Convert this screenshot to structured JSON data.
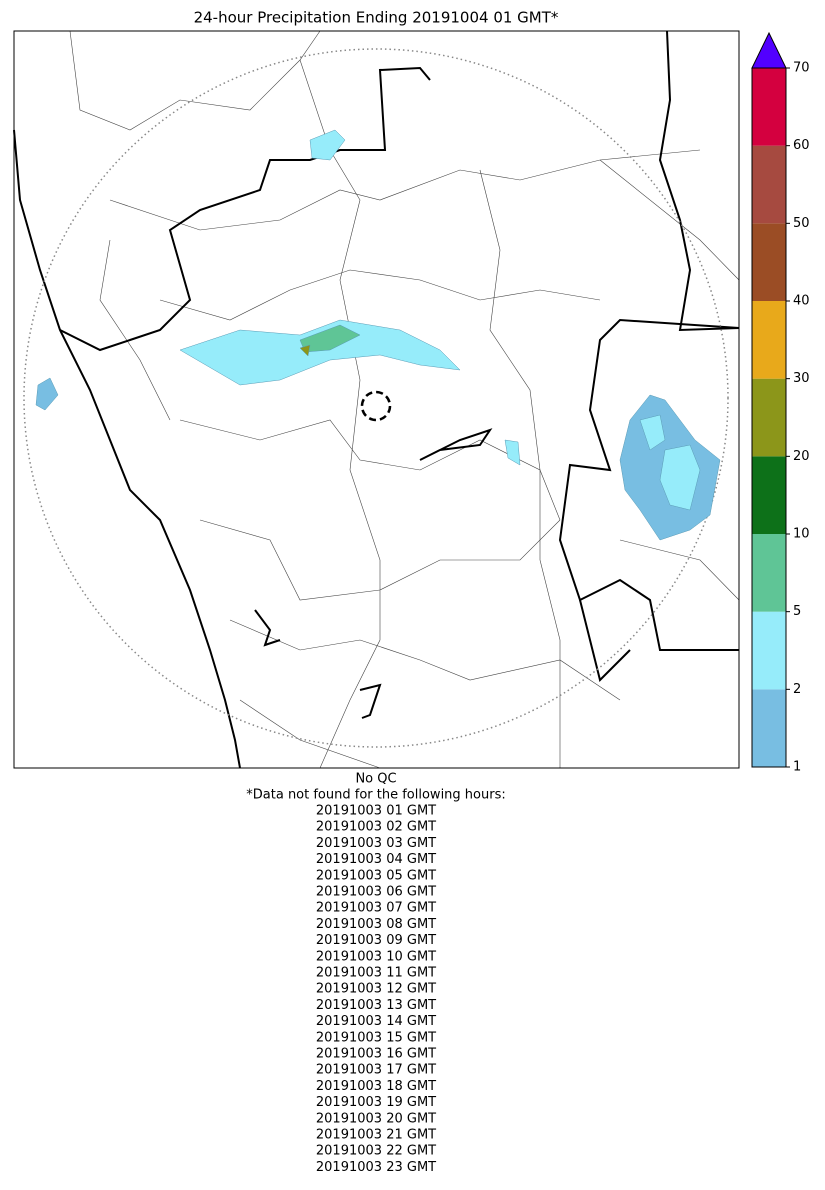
{
  "title": "24-hour Precipitation Ending 20191004 01 GMT*",
  "colorbar": {
    "ticks": [
      1,
      2,
      5,
      10,
      20,
      30,
      40,
      50,
      60,
      70
    ],
    "colors": [
      "#78bee2",
      "#96ecfa",
      "#5fc596",
      "#0d7119",
      "#8c961a",
      "#e8a91b",
      "#9b4d25",
      "#a64a40",
      "#d4003f"
    ],
    "extend_color": "#5200ff"
  },
  "footer": {
    "qc": "No QC",
    "note": "*Data not found for the following hours:",
    "hours": [
      "20191003 01 GMT",
      "20191003 02 GMT",
      "20191003 03 GMT",
      "20191003 04 GMT",
      "20191003 05 GMT",
      "20191003 06 GMT",
      "20191003 07 GMT",
      "20191003 08 GMT",
      "20191003 09 GMT",
      "20191003 10 GMT",
      "20191003 11 GMT",
      "20191003 12 GMT",
      "20191003 13 GMT",
      "20191003 14 GMT",
      "20191003 15 GMT",
      "20191003 16 GMT",
      "20191003 17 GMT",
      "20191003 18 GMT",
      "20191003 19 GMT",
      "20191003 20 GMT",
      "20191003 21 GMT",
      "20191003 22 GMT",
      "20191003 23 GMT"
    ]
  }
}
